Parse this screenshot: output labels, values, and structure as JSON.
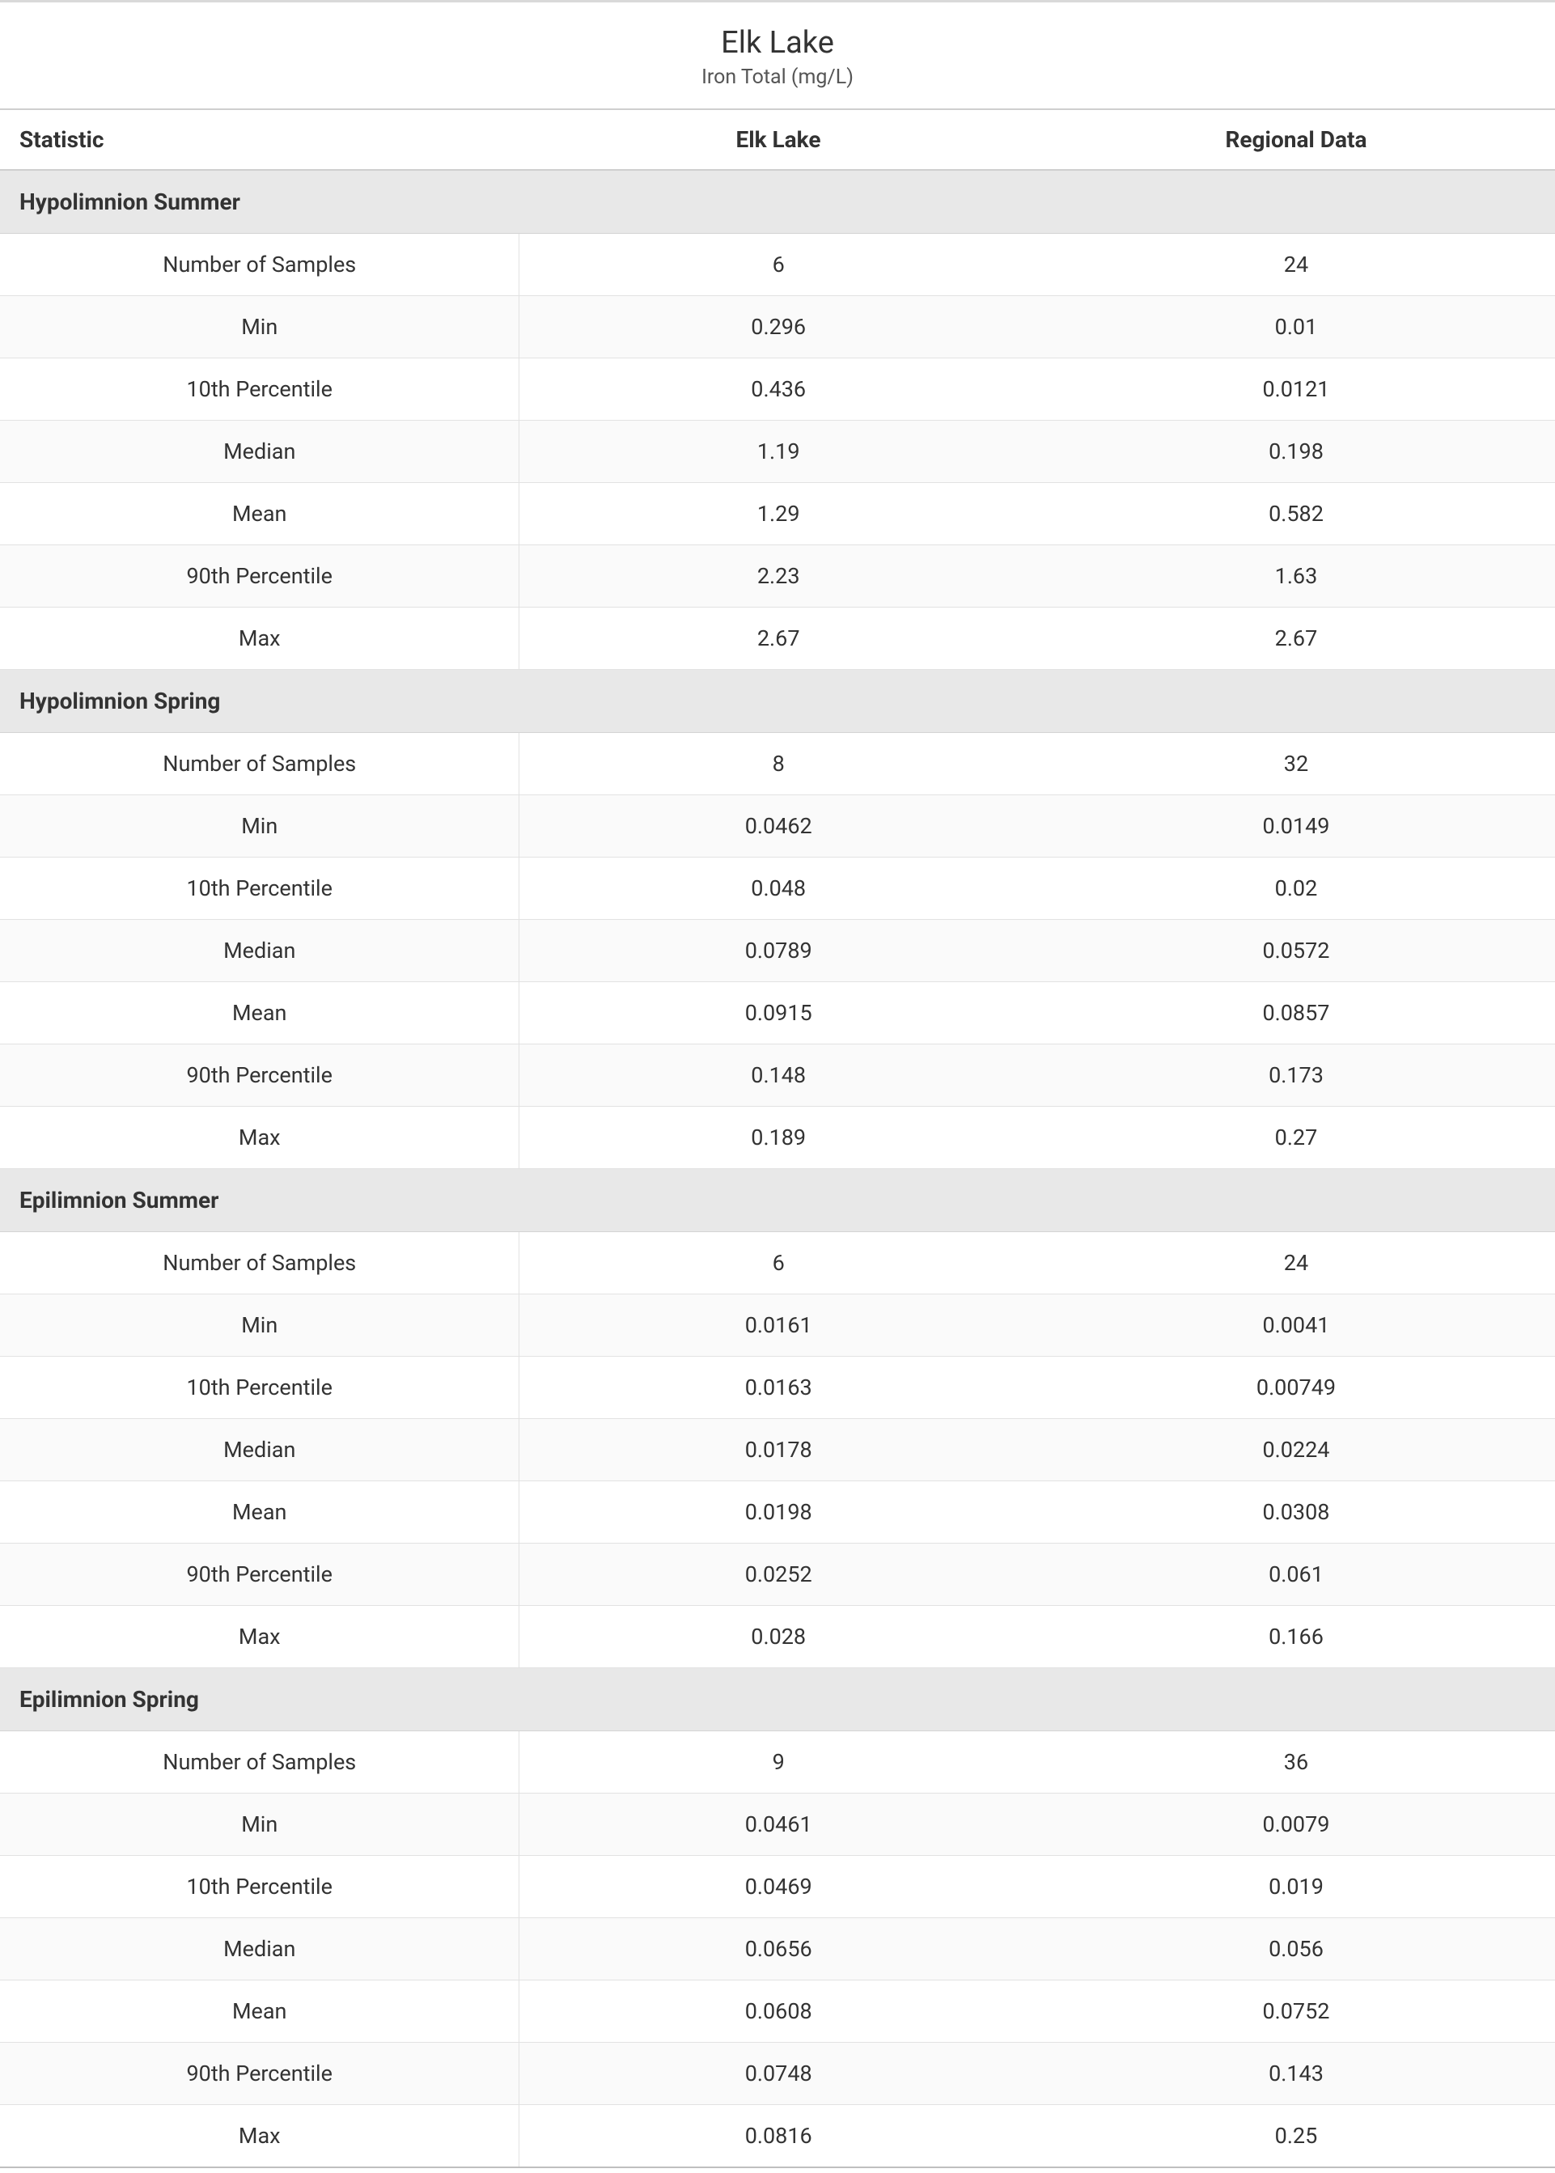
{
  "title": "Elk Lake",
  "subtitle": "Iron Total (mg/L)",
  "columns": {
    "stat": "Statistic",
    "local": "Elk Lake",
    "regional": "Regional Data"
  },
  "styles": {
    "text_color": "#333333",
    "subtitle_color": "#555555",
    "section_bg": "#e8e8e8",
    "row_alt_bg": "#fafafa",
    "border_color": "#cfcfcf",
    "row_border_color": "#e2e2e2",
    "top_rule_color": "#d9d9d9",
    "title_fontsize": 38,
    "subtitle_fontsize": 25,
    "header_fontsize": 28,
    "cell_fontsize": 27
  },
  "sections": [
    {
      "name": "Hypolimnion Summer",
      "rows": [
        {
          "stat": "Number of Samples",
          "local": "6",
          "regional": "24"
        },
        {
          "stat": "Min",
          "local": "0.296",
          "regional": "0.01"
        },
        {
          "stat": "10th Percentile",
          "local": "0.436",
          "regional": "0.0121"
        },
        {
          "stat": "Median",
          "local": "1.19",
          "regional": "0.198"
        },
        {
          "stat": "Mean",
          "local": "1.29",
          "regional": "0.582"
        },
        {
          "stat": "90th Percentile",
          "local": "2.23",
          "regional": "1.63"
        },
        {
          "stat": "Max",
          "local": "2.67",
          "regional": "2.67"
        }
      ]
    },
    {
      "name": "Hypolimnion Spring",
      "rows": [
        {
          "stat": "Number of Samples",
          "local": "8",
          "regional": "32"
        },
        {
          "stat": "Min",
          "local": "0.0462",
          "regional": "0.0149"
        },
        {
          "stat": "10th Percentile",
          "local": "0.048",
          "regional": "0.02"
        },
        {
          "stat": "Median",
          "local": "0.0789",
          "regional": "0.0572"
        },
        {
          "stat": "Mean",
          "local": "0.0915",
          "regional": "0.0857"
        },
        {
          "stat": "90th Percentile",
          "local": "0.148",
          "regional": "0.173"
        },
        {
          "stat": "Max",
          "local": "0.189",
          "regional": "0.27"
        }
      ]
    },
    {
      "name": "Epilimnion Summer",
      "rows": [
        {
          "stat": "Number of Samples",
          "local": "6",
          "regional": "24"
        },
        {
          "stat": "Min",
          "local": "0.0161",
          "regional": "0.0041"
        },
        {
          "stat": "10th Percentile",
          "local": "0.0163",
          "regional": "0.00749"
        },
        {
          "stat": "Median",
          "local": "0.0178",
          "regional": "0.0224"
        },
        {
          "stat": "Mean",
          "local": "0.0198",
          "regional": "0.0308"
        },
        {
          "stat": "90th Percentile",
          "local": "0.0252",
          "regional": "0.061"
        },
        {
          "stat": "Max",
          "local": "0.028",
          "regional": "0.166"
        }
      ]
    },
    {
      "name": "Epilimnion Spring",
      "rows": [
        {
          "stat": "Number of Samples",
          "local": "9",
          "regional": "36"
        },
        {
          "stat": "Min",
          "local": "0.0461",
          "regional": "0.0079"
        },
        {
          "stat": "10th Percentile",
          "local": "0.0469",
          "regional": "0.019"
        },
        {
          "stat": "Median",
          "local": "0.0656",
          "regional": "0.056"
        },
        {
          "stat": "Mean",
          "local": "0.0608",
          "regional": "0.0752"
        },
        {
          "stat": "90th Percentile",
          "local": "0.0748",
          "regional": "0.143"
        },
        {
          "stat": "Max",
          "local": "0.0816",
          "regional": "0.25"
        }
      ]
    }
  ]
}
